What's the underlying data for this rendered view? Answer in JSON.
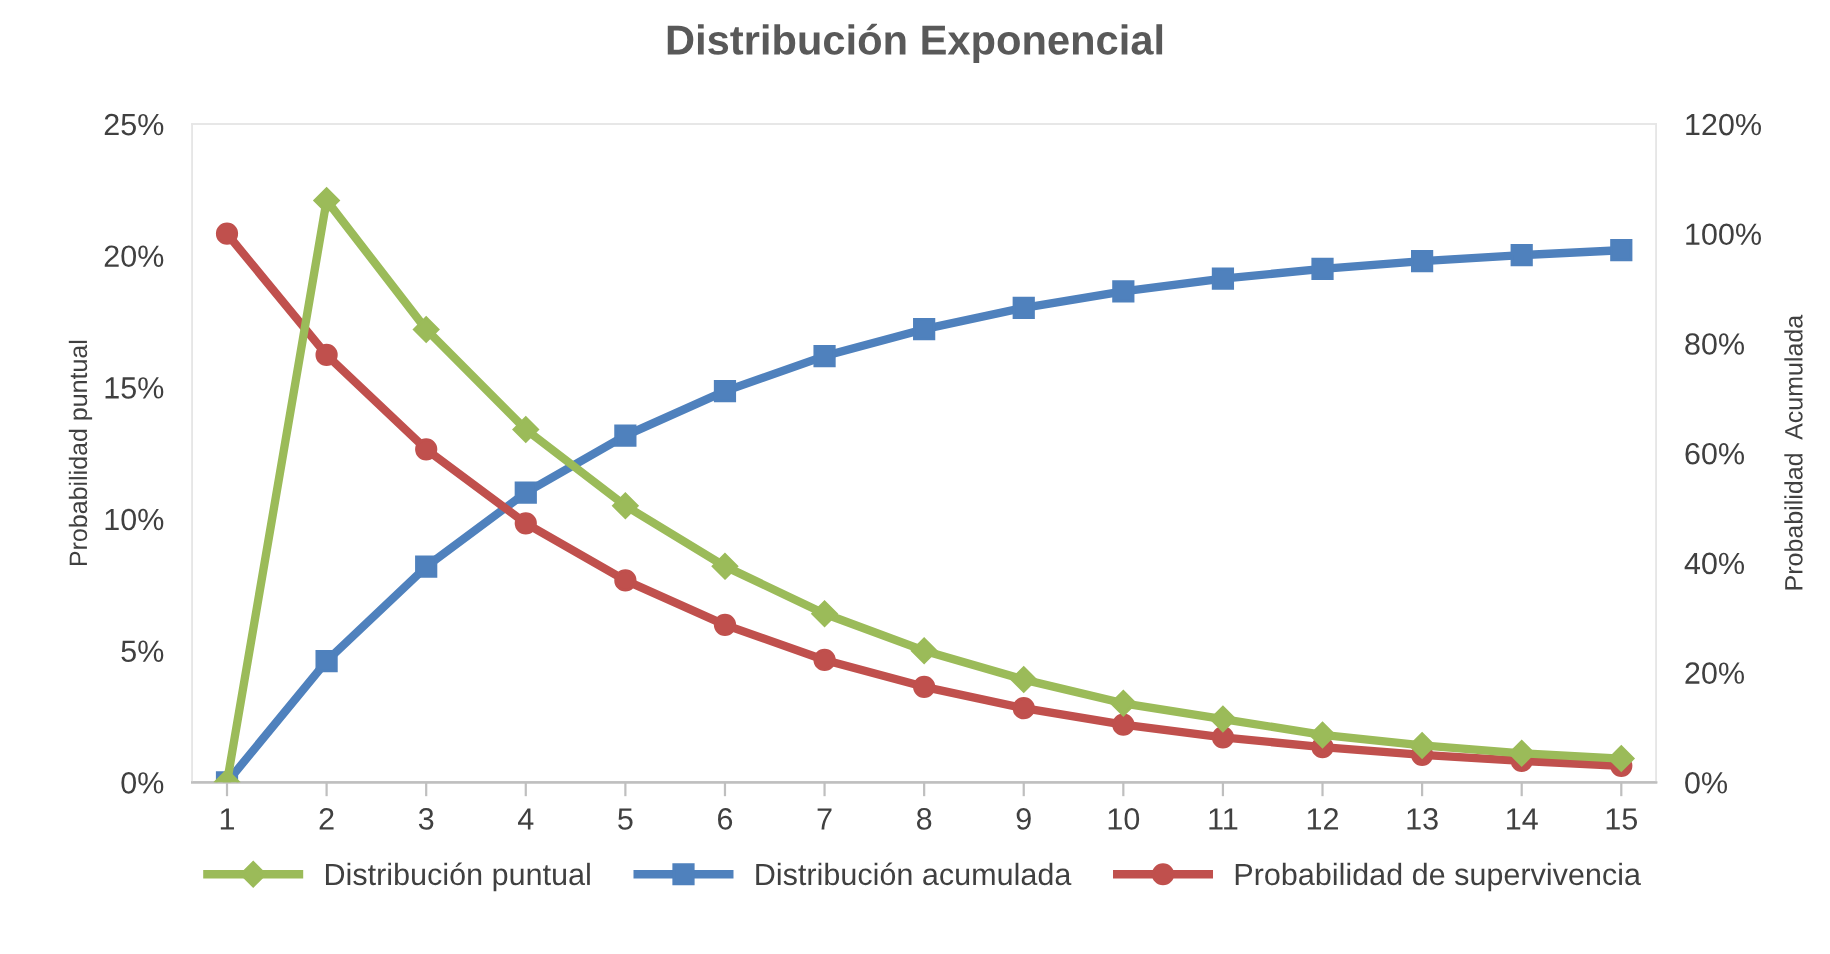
{
  "chart_data": {
    "type": "line",
    "title": "Distribución Exponencial",
    "ylabel": "Probabilidad puntual",
    "y2label": "Probabilidad  Acumulada",
    "categories": [
      "1",
      "2",
      "3",
      "4",
      "5",
      "6",
      "7",
      "8",
      "9",
      "10",
      "11",
      "12",
      "13",
      "14",
      "15"
    ],
    "series": [
      {
        "name": "Distribución puntual",
        "color": "#9bbb59",
        "marker": "diamond",
        "values": [
          0,
          22.1,
          17.2,
          13.4,
          10.5,
          8.2,
          6.4,
          5.0,
          3.9,
          3.0,
          2.4,
          1.8,
          1.4,
          1.1,
          0.9
        ]
      },
      {
        "name": "Distribución acumulada",
        "color": "#4f81bd",
        "marker": "square",
        "axis": "y2",
        "values": [
          0,
          22.1,
          39.3,
          52.8,
          63.2,
          71.3,
          77.7,
          82.6,
          86.5,
          89.5,
          91.8,
          93.6,
          95.0,
          96.1,
          97.0
        ]
      },
      {
        "name": "Probabilidad de supervivencia",
        "color": "#c0504d",
        "marker": "circle",
        "axis": "y2",
        "values": [
          100,
          77.9,
          60.7,
          47.2,
          36.8,
          28.7,
          22.3,
          17.4,
          13.5,
          10.5,
          8.2,
          6.4,
          5.0,
          3.9,
          3.0
        ]
      }
    ],
    "ylim": [
      0,
      25
    ],
    "yticks": [
      {
        "value": 0,
        "label": "0%"
      },
      {
        "value": 5,
        "label": "5%"
      },
      {
        "value": 10,
        "label": "10%"
      },
      {
        "value": 15,
        "label": "15%"
      },
      {
        "value": 20,
        "label": "20%"
      },
      {
        "value": 25,
        "label": "25%"
      }
    ],
    "y2lim": [
      0,
      120
    ],
    "y2ticks": [
      {
        "value": 0,
        "label": "0%"
      },
      {
        "value": 20,
        "label": "20%"
      },
      {
        "value": 40,
        "label": "40%"
      },
      {
        "value": 60,
        "label": "60%"
      },
      {
        "value": 80,
        "label": "80%"
      },
      {
        "value": 100,
        "label": "100%"
      },
      {
        "value": 120,
        "label": "120%"
      }
    ],
    "legend": "bottom",
    "grid": false,
    "line_style": "solid"
  }
}
